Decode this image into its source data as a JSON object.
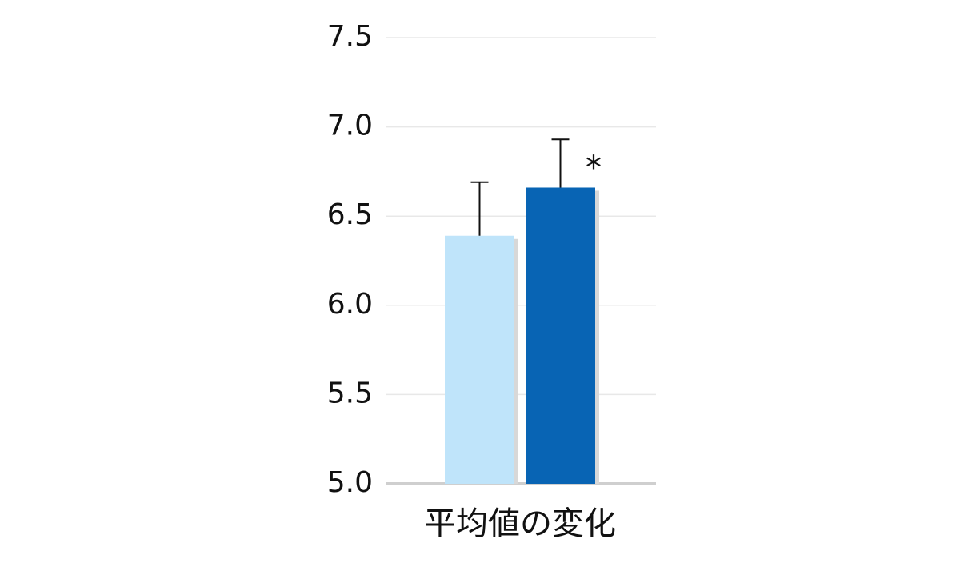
{
  "chart_data": {
    "type": "bar",
    "categories": [
      "平均値の変化"
    ],
    "series": [
      {
        "color": "#bfe4fa",
        "values": [
          6.39
        ],
        "errors": [
          0.3
        ]
      },
      {
        "color": "#0864b4",
        "values": [
          6.66
        ],
        "errors": [
          0.27
        ]
      }
    ],
    "annotation": "*",
    "ylim": [
      5,
      7.5
    ],
    "yticks": [
      {
        "value": 5,
        "label": "5.0"
      },
      {
        "value": 5.5,
        "label": "5.5"
      },
      {
        "value": 6,
        "label": "6.0"
      },
      {
        "value": 6.5,
        "label": "6.5"
      },
      {
        "value": 7,
        "label": "7.0"
      },
      {
        "value": 7.5,
        "label": "7.5"
      }
    ],
    "grid": true
  }
}
